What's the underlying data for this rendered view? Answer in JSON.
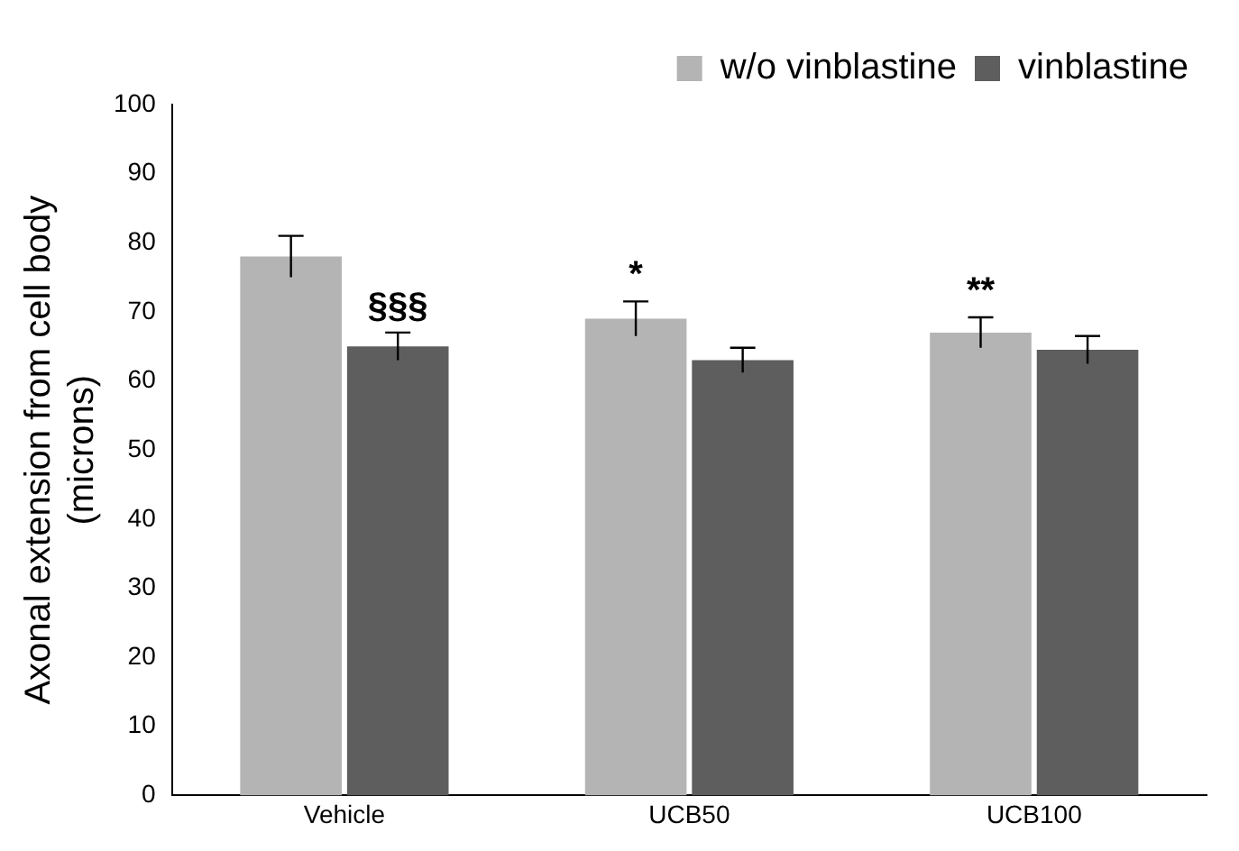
{
  "chart_data": {
    "type": "bar",
    "ylabel": "Axonal extension from cell body\n(microns)",
    "categories": [
      "Vehicle",
      "UCB50",
      "UCB100"
    ],
    "series": [
      {
        "name": "w/o vinblastine",
        "color": "#b4b4b4",
        "values": [
          78,
          69,
          67
        ],
        "errors": [
          3,
          2.5,
          2.2
        ]
      },
      {
        "name": "vinblastine",
        "color": "#5e5e5e",
        "values": [
          65,
          63,
          64.5
        ],
        "errors": [
          2,
          1.8,
          2
        ]
      }
    ],
    "ylim": [
      0,
      100
    ],
    "yticks": [
      0,
      10,
      20,
      30,
      40,
      50,
      60,
      70,
      80,
      90,
      100
    ],
    "grid": false,
    "legend": "top right",
    "annotations": [
      {
        "text": "§§§",
        "x": "Vehicle",
        "y": 65
      },
      {
        "text": "*",
        "x": "UCB50",
        "y": 69
      },
      {
        "text": "**",
        "x": "UCB100",
        "y": 67
      }
    ]
  }
}
